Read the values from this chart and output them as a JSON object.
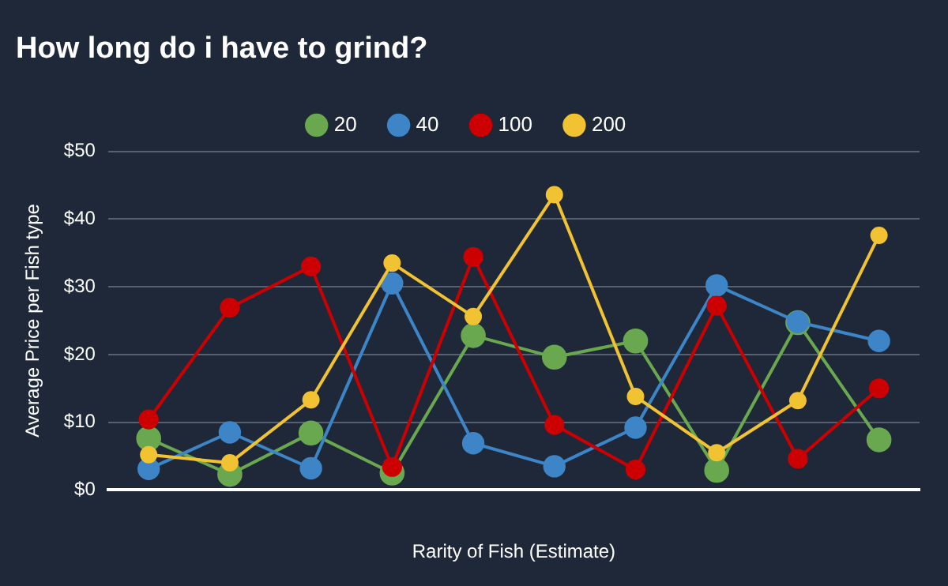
{
  "chart_data": {
    "type": "line",
    "title": "How long do i have to grind?",
    "xlabel": "Rarity of Fish (Estimate)",
    "ylabel": "Average Price per Fish type",
    "categories": [
      null,
      null,
      null,
      null,
      null,
      null,
      null,
      null,
      null,
      null
    ],
    "series": [
      {
        "name": "20",
        "color": "#6aa84f",
        "values": [
          7.6,
          2.3,
          8.4,
          2.5,
          22.8,
          19.6,
          22.0,
          2.9,
          24.7,
          7.4
        ]
      },
      {
        "name": "40",
        "color": "#3d85c6",
        "values": [
          3.1,
          8.5,
          3.2,
          30.5,
          6.9,
          3.5,
          9.2,
          30.2,
          24.8,
          22.0
        ]
      },
      {
        "name": "100",
        "color": "#cc0000",
        "values": [
          10.4,
          26.9,
          33.0,
          3.4,
          34.4,
          9.6,
          3.0,
          27.2,
          4.6,
          15.0
        ]
      },
      {
        "name": "200",
        "color": "#f1c232",
        "values": [
          5.2,
          4.0,
          13.3,
          33.5,
          25.6,
          43.6,
          13.8,
          5.5,
          13.2,
          37.6
        ]
      }
    ],
    "ylim": [
      0,
      50
    ],
    "yticks": [
      {
        "value": 0,
        "label": "$0"
      },
      {
        "value": 10,
        "label": "$10"
      },
      {
        "value": 20,
        "label": "$20"
      },
      {
        "value": 30,
        "label": "$30"
      },
      {
        "value": 40,
        "label": "$40"
      },
      {
        "value": 50,
        "label": "$50"
      }
    ],
    "grid": "y",
    "legend": "top",
    "marker": "circle",
    "line_style": "solid"
  }
}
